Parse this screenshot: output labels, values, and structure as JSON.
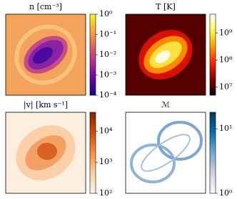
{
  "chart_data": [
    {
      "type": "heatmap",
      "title": "n [cm⁻³]",
      "log_scale": true,
      "clim": [
        0.0001,
        1
      ],
      "cticks": [
        {
          "value": 0.0001,
          "label": "10⁻⁴"
        },
        {
          "value": 0.001,
          "label": "10⁻³"
        },
        {
          "value": 0.01,
          "label": "10⁻²"
        },
        {
          "value": 0.1,
          "label": "10⁻¹"
        },
        {
          "value": 1,
          "label": "10⁰"
        }
      ],
      "colormap": [
        "#0d0887",
        "#6a00a8",
        "#b12a90",
        "#e16462",
        "#fca636",
        "#f0f921"
      ]
    },
    {
      "type": "heatmap",
      "title": "T [K]",
      "log_scale": true,
      "clim": [
        5000000,
        5000000000
      ],
      "cticks": [
        {
          "value": 10000000,
          "label": "10⁷"
        },
        {
          "value": 100000000,
          "label": "10⁸"
        },
        {
          "value": 1000000000,
          "label": "10⁹"
        }
      ],
      "colormap": [
        "#0b0000",
        "#8b0000",
        "#ff2000",
        "#ff9a00",
        "#ffff40",
        "#ffffff"
      ]
    },
    {
      "type": "heatmap",
      "title": "|v| [km s⁻¹]",
      "log_scale": true,
      "clim": [
        100,
        40000
      ],
      "cticks": [
        {
          "value": 100,
          "label": "10²"
        },
        {
          "value": 1000,
          "label": "10³"
        },
        {
          "value": 10000,
          "label": "10⁴"
        }
      ],
      "colormap": [
        "#fff5eb",
        "#fdd0a2",
        "#fd8d3c",
        "#d94801",
        "#7f2704"
      ]
    },
    {
      "type": "heatmap",
      "title": "ℳ",
      "log_scale": true,
      "clim": [
        1,
        18
      ],
      "cticks": [
        {
          "value": 1,
          "label": "10⁰"
        },
        {
          "value": 10,
          "label": "10¹"
        }
      ],
      "colormap": [
        "#fff7fb",
        "#d0d1e6",
        "#74a9cf",
        "#0570b0",
        "#023858"
      ]
    }
  ]
}
